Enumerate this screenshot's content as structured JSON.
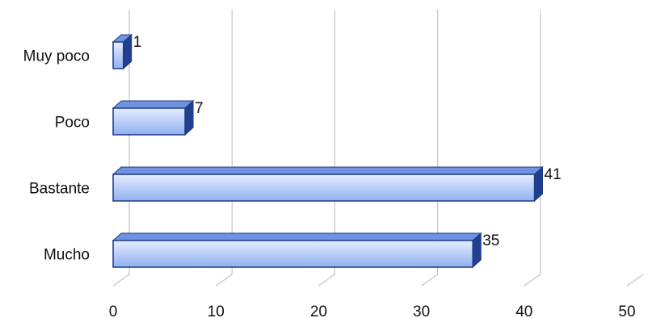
{
  "chart_data": {
    "type": "bar",
    "orientation": "horizontal",
    "style": "3d",
    "categories": [
      "Muy poco",
      "Poco",
      "Bastante",
      "Mucho"
    ],
    "values": [
      1,
      7,
      41,
      35
    ],
    "data_labels": [
      "1",
      "7",
      "41",
      "35"
    ],
    "xlim": [
      0,
      50
    ],
    "x_ticks": [
      "0",
      "10",
      "20",
      "30",
      "40",
      "50"
    ],
    "grid": true,
    "legend": "none",
    "title": "",
    "xlabel": "",
    "ylabel": "",
    "colors": {
      "bar_front_top": "#e4eeff",
      "bar_front_bottom": "#8fb0f0",
      "bar_side": "#223f8f",
      "bar_top": "#6f93e0",
      "bar_stroke": "#1f3a86",
      "grid": "#c4c4c4",
      "label": "#111111"
    }
  }
}
